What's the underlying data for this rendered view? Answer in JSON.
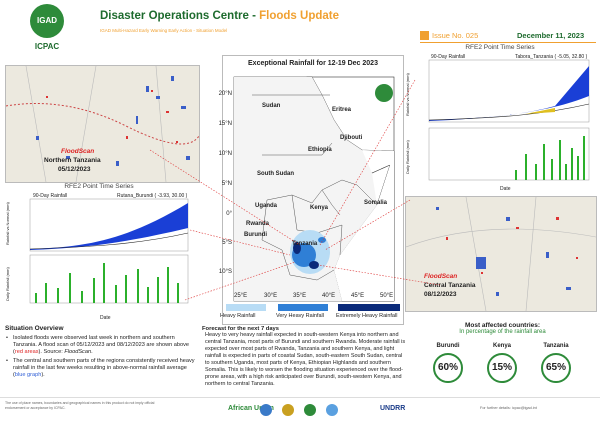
{
  "header": {
    "logo_text": "IGAD",
    "org": "ICPAC",
    "title_main": "Disaster Operations Centre - ",
    "title_accent": "Floods Update",
    "subtitle": "IGAD Multi-Hazard Early Warning Early Action - Situation Model",
    "issue": "Issue No. 025",
    "date": "December 11, 2023"
  },
  "map": {
    "title": "Exceptional Rainfall for 12-19 Dec 2023",
    "lat_ticks": [
      "20°N",
      "15°N",
      "10°N",
      "5°N",
      "0°",
      "5°S",
      "10°S"
    ],
    "lon_ticks": [
      "25°E",
      "30°E",
      "35°E",
      "40°E",
      "45°E",
      "50°E"
    ],
    "countries": [
      "Sudan",
      "Eritrea",
      "Djibouti",
      "Ethiopia",
      "South Sudan",
      "Somalia",
      "Uganda",
      "Kenya",
      "Rwanda",
      "Burundi",
      "Tanzania"
    ],
    "legend": [
      "Heavy Rainfall",
      "Very Heavy Rainfall",
      "Extremely Heavy Rainfall"
    ]
  },
  "panels": {
    "north_scan": {
      "source": "FloodScan",
      "place": "Northern Tanzania",
      "date": "05/12/2023"
    },
    "central_scan": {
      "source": "FloodScan",
      "place": "Central Tanzania",
      "date": "08/12/2023"
    },
    "left_chart": {
      "title": "RFE2 Point Time Series",
      "subtitle": "90-Day Rainfall",
      "point": "Rutana_Burundi ( -3.93, 30.00 )",
      "y1": "Rainfall vs Normal (mm)",
      "y2": "Daily Rainfall (mm)",
      "x": "Date"
    },
    "right_chart": {
      "title": "RFE2 Point Time Series",
      "subtitle": "90-Day Rainfall",
      "point": "Tabora_Tanzania ( -5.05, 32.80 )",
      "y1": "Rainfall vs Normal (mm)",
      "y2": "Daily Rainfall (mm)",
      "x": "Date"
    }
  },
  "situation": {
    "heading": "Situation Overview",
    "bullet1": {
      "a": "Isolated floods were observed last week in northern and southern Tanzania. A flood scan of 05/12/2023 and 08/12/2023 are shown above (",
      "red": "red areas",
      "b": "). Source: ",
      "src": "FloodScan",
      "c": "."
    },
    "bullet2": {
      "a": "The central and southern parts of the regions consistently received heavy rainfall in the last few weeks resulting in above-normal rainfall average (",
      "blue": "blue graph",
      "b": ")."
    }
  },
  "forecast": {
    "heading": "Forecast for the next 7 days",
    "text": "Heavy to very heavy rainfall expected in south-western Kenya into northern and central Tanzania, most parts of Burundi and southern Rwanda. Moderate rainfall is expected over most parts of Rwanda, Tanzania and southern Kenya, and light rainfall is expected in parts of coastal Sudan, south-eastern South Sudan, central to southern Uganda, most parts of Kenya, Ethiopian Highlands and southern Somalia. This is likely to worsen the flooding situation experienced over the flood-prone areas, with a high risk anticipated over Burundi, south-western Kenya, and northern to central Tanzania."
  },
  "affected": {
    "heading": "Most affected countries:",
    "sub": "In percentage of the rainfall area",
    "countries": [
      {
        "name": "Burundi",
        "pct": "60%"
      },
      {
        "name": "Kenya",
        "pct": "15%"
      },
      {
        "name": "Tanzania",
        "pct": "65%"
      }
    ]
  },
  "footer": {
    "note": "The use of place names, boundaries and geographical names in this product do not imply official endorsement or acceptance by ICPAC.",
    "partners": [
      "African Union",
      "UNDRR"
    ],
    "contact": "For further details: icpac@igad.int"
  }
}
